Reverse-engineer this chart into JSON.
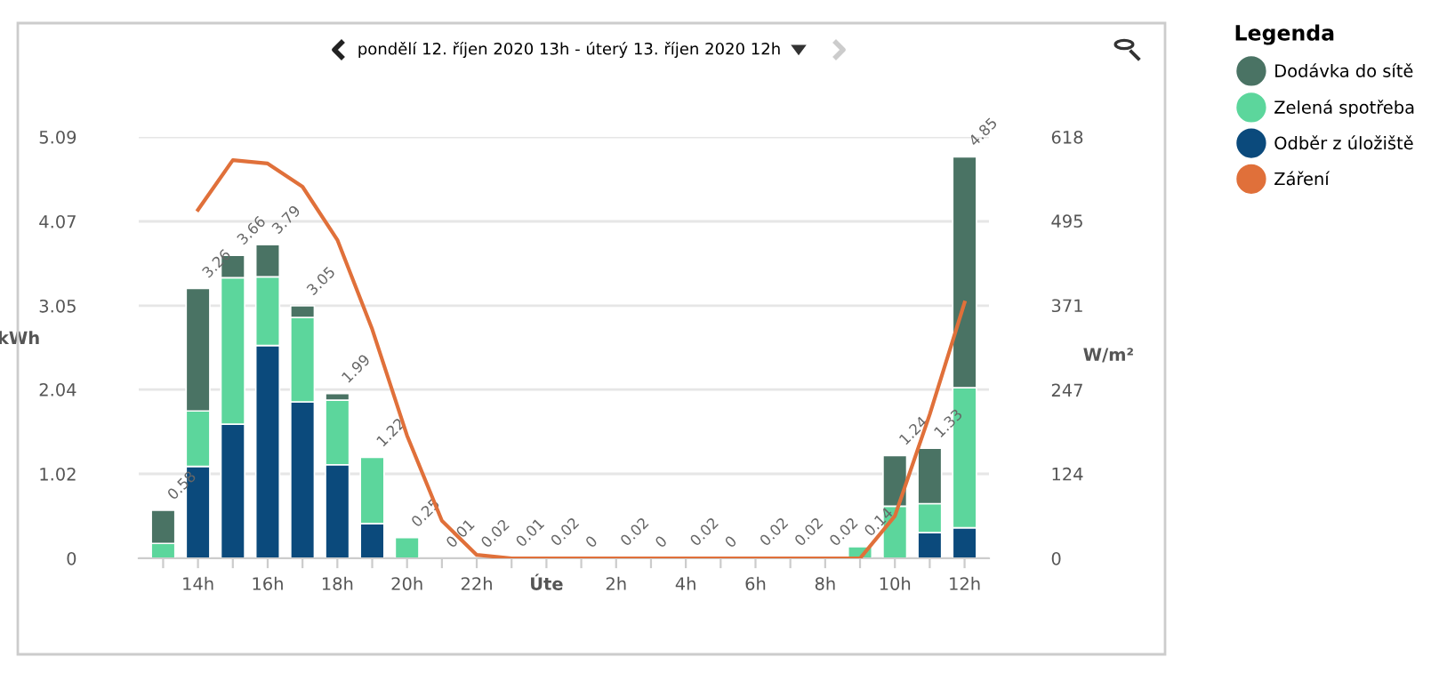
{
  "chart_data": {
    "type": "bar",
    "stacked": true,
    "title": "pondělí 12. říjen 2020 13h - úterý 13. říjen 2020 12h",
    "ylabel": "kWh",
    "y2label": "W/m²",
    "legend_title": "Legenda",
    "categories": [
      null,
      "14h",
      null,
      "16h",
      null,
      "18h",
      null,
      "20h",
      null,
      "22h",
      null,
      "Úte",
      null,
      "2h",
      null,
      "4h",
      null,
      "6h",
      null,
      "8h",
      null,
      "10h",
      null,
      "12h"
    ],
    "series": [
      {
        "name": "Odběr z úložiště",
        "color": "#0b4a7c",
        "values": [
          0,
          1.11,
          1.62,
          2.57,
          1.89,
          1.13,
          0.42,
          0,
          0,
          0,
          0,
          0,
          0,
          0,
          0,
          0,
          0,
          0,
          0,
          0,
          0,
          0,
          0.31,
          0.37
        ]
      },
      {
        "name": "Zelená spotřeba",
        "color": "#5cd69c",
        "values": [
          0.18,
          0.67,
          1.77,
          0.83,
          1.02,
          0.78,
          0.8,
          0.25,
          null,
          null,
          0.01,
          0.02,
          0,
          0.02,
          0,
          0.02,
          0,
          0.02,
          0.02,
          0.02,
          0.14,
          0.63,
          0.35,
          1.69
        ]
      },
      {
        "name": "Dodávka do sítě",
        "color": "#4a7364",
        "values": [
          0.4,
          1.48,
          0.27,
          0.39,
          0.14,
          0.08,
          0,
          0,
          0,
          0,
          0,
          0,
          0,
          0,
          0,
          0,
          0,
          0,
          0,
          0,
          0,
          0.61,
          0.67,
          2.79
        ]
      },
      {
        "name": "Záření",
        "type": "line",
        "axis": "y2",
        "color": "#e0703a",
        "values": [
          null,
          511,
          584,
          579,
          545,
          467,
          336,
          180,
          55,
          5,
          0,
          0,
          0,
          0,
          0,
          0,
          0,
          0,
          0,
          0,
          0,
          62,
          211,
          375
        ]
      }
    ],
    "totals": [
      "0.58",
      "3.26",
      "3.66",
      "3.79",
      "3.05",
      "1.99",
      "1.22",
      "0.25",
      "0.01",
      "0.02",
      "0.01",
      "0.02",
      "0",
      "0.02",
      "0",
      "0.02",
      "0",
      "0.02",
      "0.02",
      "0.02",
      "0.14",
      "1.24",
      "1.33",
      "4.85"
    ],
    "ylim": [
      0,
      5.09
    ],
    "yticks": [
      0,
      1.02,
      2.04,
      3.05,
      4.07,
      5.09
    ],
    "y2lim": [
      0,
      618
    ],
    "y2ticks": [
      0,
      124,
      247,
      371,
      495,
      618
    ],
    "grid": "y",
    "legend": "right",
    "marker": "none",
    "line_style": "solid"
  }
}
